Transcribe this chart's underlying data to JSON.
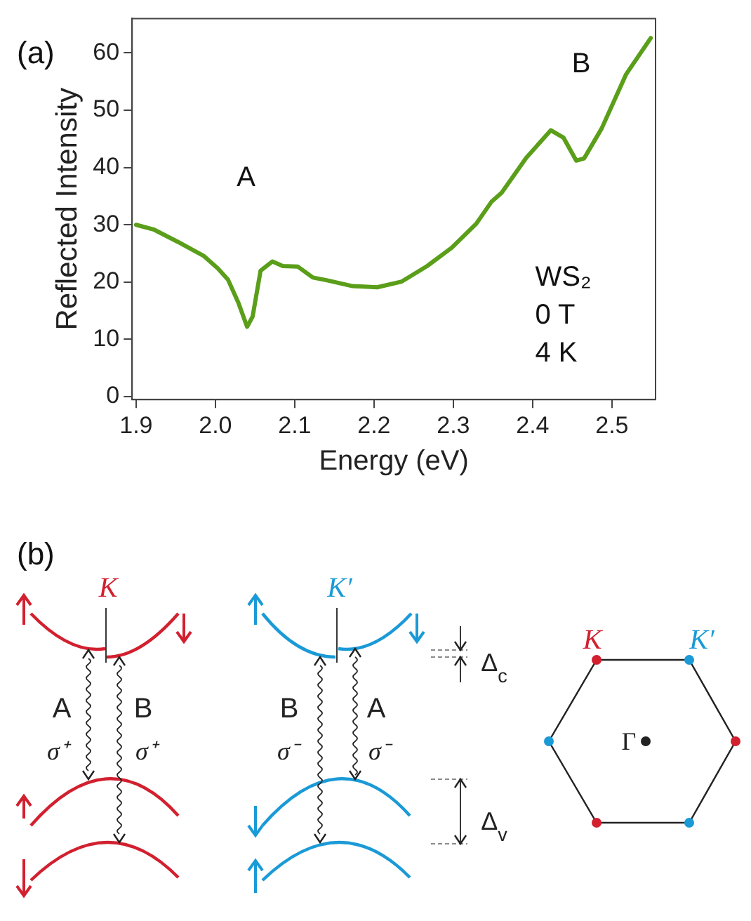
{
  "chart_data": [
    {
      "type": "line",
      "title": "(a)",
      "xlabel": "Energy (eV)",
      "ylabel": "Reflected Intensity",
      "x": [
        1.9,
        1.922,
        1.953,
        1.985,
        2.003,
        2.016,
        2.029,
        2.04,
        2.047,
        2.057,
        2.072,
        2.085,
        2.104,
        2.123,
        2.141,
        2.173,
        2.204,
        2.235,
        2.267,
        2.298,
        2.329,
        2.348,
        2.361,
        2.392,
        2.423,
        2.439,
        2.455,
        2.465,
        2.487,
        2.518,
        2.549
      ],
      "series": [
        {
          "color": "#5a9e1a",
          "values": [
            30.0,
            29.2,
            27.0,
            24.6,
            22.4,
            20.4,
            16.4,
            12.2,
            14.0,
            22.0,
            23.6,
            22.8,
            22.7,
            20.8,
            20.3,
            19.3,
            19.1,
            20.1,
            22.8,
            26.0,
            30.2,
            34.0,
            35.6,
            41.7,
            46.5,
            45.2,
            41.2,
            41.6,
            46.8,
            56.3,
            62.6
          ]
        }
      ],
      "xlim": [
        1.895,
        2.555
      ],
      "xticks": [
        1.9,
        {
          "value": 2,
          "label": "2.0"
        },
        2.1,
        2.2,
        2.3,
        2.4,
        2.5
      ],
      "ylim": [
        -0.5,
        66
      ],
      "yticks": [
        0,
        10,
        20,
        30,
        40,
        50,
        60
      ],
      "grid": false,
      "legend": false,
      "marker": "none",
      "line_style": "solid",
      "annotations": [
        "A",
        "B",
        "WS₂",
        "0 T",
        "4 K"
      ]
    },
    {
      "type": "other",
      "title": "(b)",
      "annotations": [
        "K",
        "A",
        "B",
        "σ⁺",
        "σ⁺",
        "K′",
        "B",
        "A",
        "σ⁻",
        "σ⁻",
        "Δ$_{c}$",
        "Δ$_{v}$",
        "K",
        "K′",
        "Γ"
      ]
    }
  ]
}
